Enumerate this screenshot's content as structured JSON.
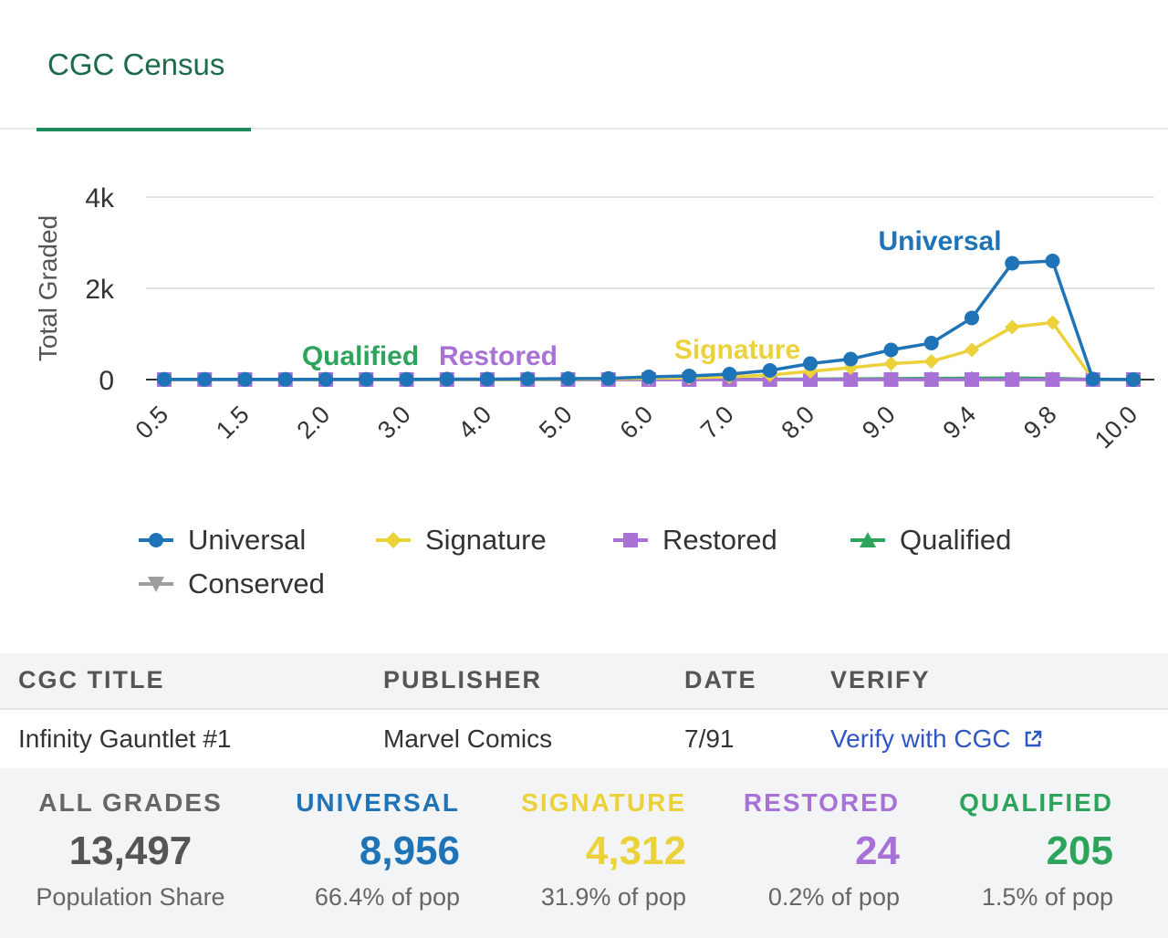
{
  "tab": {
    "label": "CGC Census"
  },
  "colors": {
    "universal": "#1f73b7",
    "signature": "#ecd23a",
    "restored": "#a871d6",
    "qualified": "#2ca45c",
    "conserved": "#9e9e9e",
    "tab_accent": "#1c8a5c",
    "link": "#2f56c5"
  },
  "chart_data": {
    "type": "line",
    "ylabel": "Total Graded",
    "yticks": [
      "0",
      "2k",
      "4k"
    ],
    "ylim": [
      0,
      4000
    ],
    "x": [
      "0.5",
      "1.0",
      "1.5",
      "1.8",
      "2.0",
      "2.5",
      "3.0",
      "3.5",
      "4.0",
      "4.5",
      "5.0",
      "5.5",
      "6.0",
      "6.5",
      "7.0",
      "7.5",
      "8.0",
      "8.5",
      "9.0",
      "9.2",
      "9.4",
      "9.6",
      "9.8",
      "9.9",
      "10.0"
    ],
    "xticklabels": [
      "0.5",
      "1.5",
      "2.0",
      "3.0",
      "4.0",
      "5.0",
      "6.0",
      "7.0",
      "8.0",
      "9.0",
      "9.4",
      "9.8",
      "10.0"
    ],
    "series": [
      {
        "name": "Universal",
        "values": [
          5,
          5,
          5,
          5,
          5,
          5,
          5,
          10,
          10,
          15,
          20,
          25,
          60,
          80,
          120,
          200,
          350,
          450,
          650,
          800,
          1350,
          2550,
          2600,
          10,
          0
        ]
      },
      {
        "name": "Signature",
        "values": [
          2,
          2,
          2,
          2,
          2,
          2,
          2,
          5,
          5,
          5,
          10,
          15,
          30,
          40,
          60,
          100,
          180,
          260,
          350,
          400,
          650,
          1150,
          1250,
          5,
          0
        ]
      },
      {
        "name": "Restored",
        "values": [
          1,
          1,
          1,
          1,
          1,
          1,
          1,
          1,
          1,
          1,
          1,
          1,
          1,
          1,
          1,
          1,
          1,
          1,
          1,
          1,
          1,
          1,
          1,
          1,
          0
        ]
      },
      {
        "name": "Qualified",
        "values": [
          1,
          1,
          1,
          1,
          1,
          1,
          1,
          1,
          1,
          1,
          2,
          2,
          3,
          5,
          5,
          8,
          10,
          15,
          20,
          25,
          30,
          35,
          25,
          5,
          0
        ]
      },
      {
        "name": "Conserved",
        "values": [
          0,
          0,
          0,
          0,
          0,
          0,
          0,
          0,
          0,
          0,
          0,
          0,
          0,
          0,
          0,
          0,
          0,
          0,
          0,
          0,
          0,
          0,
          0,
          0,
          0
        ]
      }
    ],
    "annotations": [
      "Universal",
      "Signature",
      "Qualified",
      "Restored"
    ]
  },
  "legend": [
    {
      "label": "Universal",
      "marker": "circle"
    },
    {
      "label": "Signature",
      "marker": "diamond"
    },
    {
      "label": "Restored",
      "marker": "square"
    },
    {
      "label": "Qualified",
      "marker": "triangle"
    },
    {
      "label": "Conserved",
      "marker": "triangle-down"
    }
  ],
  "table": {
    "headers": {
      "title": "CGC TITLE",
      "publisher": "PUBLISHER",
      "date": "DATE",
      "verify": "VERIFY"
    },
    "row": {
      "title": "Infinity Gauntlet #1",
      "publisher": "Marvel Comics",
      "date": "7/91",
      "verify": "Verify with CGC"
    }
  },
  "stats": [
    {
      "label": "ALL GRADES",
      "value": "13,497",
      "sub": "Population Share"
    },
    {
      "label": "UNIVERSAL",
      "value": "8,956",
      "sub": "66.4% of pop"
    },
    {
      "label": "SIGNATURE",
      "value": "4,312",
      "sub": "31.9% of pop"
    },
    {
      "label": "RESTORED",
      "value": "24",
      "sub": "0.2% of pop"
    },
    {
      "label": "QUALIFIED",
      "value": "205",
      "sub": "1.5% of pop"
    }
  ]
}
